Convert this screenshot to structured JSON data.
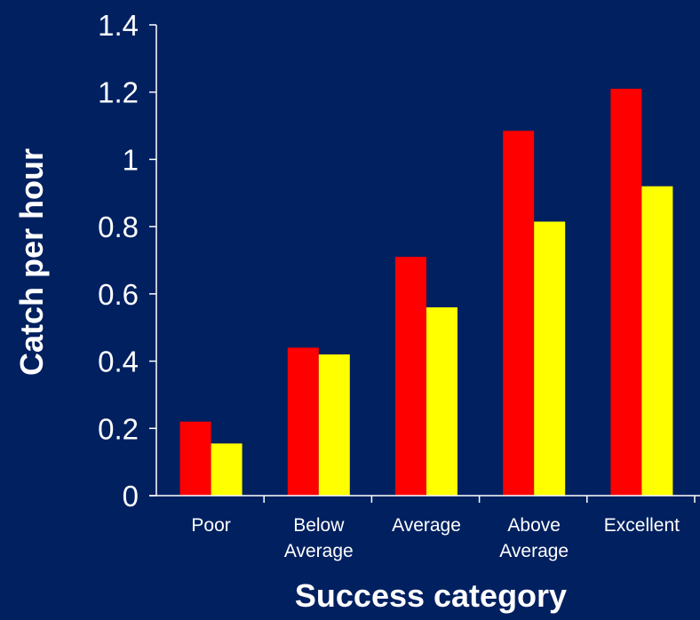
{
  "chart_data": {
    "type": "bar",
    "title": "",
    "xlabel": "Success category",
    "ylabel": "Catch per hour",
    "categories": [
      [
        "Poor"
      ],
      [
        "Below",
        "Average"
      ],
      [
        "Average"
      ],
      [
        "Above",
        "Average"
      ],
      [
        "Excellent"
      ]
    ],
    "series": [
      {
        "color": "#ff0000",
        "values": [
          0.22,
          0.44,
          0.71,
          1.085,
          1.21
        ]
      },
      {
        "color": "#ffff00",
        "values": [
          0.155,
          0.42,
          0.56,
          0.815,
          0.92
        ]
      }
    ],
    "ylim": [
      0,
      1.4
    ],
    "yticks": [
      0,
      0.2,
      0.4,
      0.6,
      0.8,
      1,
      1.2,
      1.4
    ],
    "ytick_labels": [
      "0",
      "0.2",
      "0.4",
      "0.6",
      "0.8",
      "1",
      "1.2",
      "1.4"
    ],
    "grid": false,
    "legend": "none",
    "colors": {
      "background": "#002060",
      "axis": "#ffffff",
      "text": "#ffffff"
    }
  }
}
